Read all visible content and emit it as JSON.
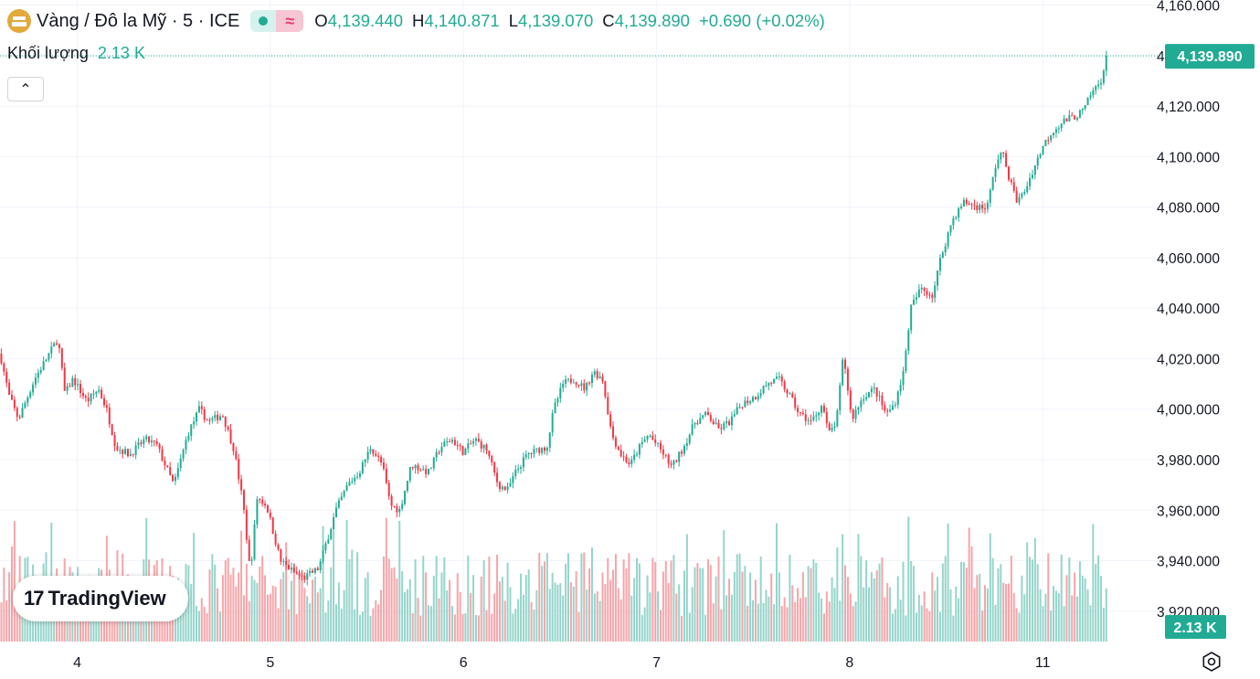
{
  "header": {
    "symbol": "Vàng / Đô la Mỹ · 5 · ICE",
    "open_label": "O",
    "open": "4,139.440",
    "high_label": "H",
    "high": "4,140.871",
    "low_label": "L",
    "low": "4,139.070",
    "close_label": "C",
    "close": "4,139.890",
    "change": "+0.690 (+0.02%)"
  },
  "volume": {
    "label": "Khối lượng",
    "value": "2.13 K"
  },
  "brand": {
    "name": "TradingView",
    "mark": "17"
  },
  "colors": {
    "up": "#22ab94",
    "down": "#f23645",
    "up_vol": "#95d5cb",
    "down_vol": "#f6a5a9",
    "grid": "#f0f3fa",
    "axis_text": "#131722"
  },
  "chart_data": {
    "type": "candlestick",
    "title": "Vàng / Đô la Mỹ · 5 · ICE",
    "ylim": [
      3908,
      4162
    ],
    "y_ticks": [
      "4,160.000",
      "4,140.000",
      "4,120.000",
      "4,100.000",
      "4,080.000",
      "4,060.000",
      "4,040.000",
      "4,020.000",
      "4,000.000",
      "3,980.000",
      "3,960.000",
      "3,940.000",
      "3,920.000"
    ],
    "y_tick_values": [
      4160,
      4140,
      4120,
      4100,
      4080,
      4060,
      4040,
      4020,
      4000,
      3980,
      3960,
      3940,
      3920
    ],
    "x_ticks": [
      "4",
      "5",
      "6",
      "7",
      "8",
      "11"
    ],
    "x_tick_positions": [
      0.0667,
      0.2333,
      0.4,
      0.5667,
      0.7333,
      0.9
    ],
    "last_price_label": "4,139.890",
    "last_price": 4139.89,
    "last_volume_label": "2.13 K",
    "path": [
      [
        0,
        4022
      ],
      [
        0.008,
        4005
      ],
      [
        0.016,
        3996
      ],
      [
        0.03,
        4012
      ],
      [
        0.04,
        4020
      ],
      [
        0.05,
        4028
      ],
      [
        0.056,
        4006
      ],
      [
        0.063,
        4012
      ],
      [
        0.075,
        4003
      ],
      [
        0.085,
        4008
      ],
      [
        0.092,
        4000
      ],
      [
        0.1,
        3985
      ],
      [
        0.112,
        3982
      ],
      [
        0.125,
        3988
      ],
      [
        0.135,
        3986
      ],
      [
        0.15,
        3970
      ],
      [
        0.162,
        3990
      ],
      [
        0.172,
        4000
      ],
      [
        0.18,
        3995
      ],
      [
        0.192,
        3998
      ],
      [
        0.202,
        3984
      ],
      [
        0.21,
        3962
      ],
      [
        0.216,
        3935
      ],
      [
        0.222,
        3965
      ],
      [
        0.23,
        3962
      ],
      [
        0.242,
        3940
      ],
      [
        0.252,
        3936
      ],
      [
        0.262,
        3933
      ],
      [
        0.275,
        3937
      ],
      [
        0.29,
        3960
      ],
      [
        0.3,
        3970
      ],
      [
        0.31,
        3975
      ],
      [
        0.32,
        3985
      ],
      [
        0.33,
        3978
      ],
      [
        0.337,
        3962
      ],
      [
        0.345,
        3960
      ],
      [
        0.355,
        3978
      ],
      [
        0.37,
        3975
      ],
      [
        0.38,
        3985
      ],
      [
        0.39,
        3988
      ],
      [
        0.4,
        3983
      ],
      [
        0.41,
        3988
      ],
      [
        0.42,
        3984
      ],
      [
        0.43,
        3970
      ],
      [
        0.438,
        3968
      ],
      [
        0.445,
        3975
      ],
      [
        0.455,
        3982
      ],
      [
        0.465,
        3984
      ],
      [
        0.472,
        3985
      ],
      [
        0.478,
        4000
      ],
      [
        0.486,
        4010
      ],
      [
        0.495,
        4012
      ],
      [
        0.505,
        4008
      ],
      [
        0.512,
        4015
      ],
      [
        0.52,
        4012
      ],
      [
        0.528,
        3990
      ],
      [
        0.536,
        3982
      ],
      [
        0.544,
        3978
      ],
      [
        0.552,
        3985
      ],
      [
        0.56,
        3990
      ],
      [
        0.57,
        3984
      ],
      [
        0.58,
        3977
      ],
      [
        0.59,
        3985
      ],
      [
        0.6,
        3995
      ],
      [
        0.61,
        3998
      ],
      [
        0.62,
        3992
      ],
      [
        0.63,
        3995
      ],
      [
        0.64,
        4002
      ],
      [
        0.652,
        4005
      ],
      [
        0.662,
        4010
      ],
      [
        0.672,
        4012
      ],
      [
        0.682,
        4005
      ],
      [
        0.69,
        3998
      ],
      [
        0.7,
        3995
      ],
      [
        0.71,
        4002
      ],
      [
        0.715,
        3990
      ],
      [
        0.722,
        3995
      ],
      [
        0.728,
        4022
      ],
      [
        0.735,
        3996
      ],
      [
        0.745,
        4005
      ],
      [
        0.755,
        4008
      ],
      [
        0.765,
        3998
      ],
      [
        0.772,
        4002
      ],
      [
        0.78,
        4015
      ],
      [
        0.786,
        4040
      ],
      [
        0.795,
        4048
      ],
      [
        0.805,
        4045
      ],
      [
        0.812,
        4060
      ],
      [
        0.822,
        4075
      ],
      [
        0.832,
        4082
      ],
      [
        0.845,
        4080
      ],
      [
        0.852,
        4080
      ],
      [
        0.86,
        4098
      ],
      [
        0.865,
        4102
      ],
      [
        0.872,
        4090
      ],
      [
        0.878,
        4082
      ],
      [
        0.884,
        4086
      ],
      [
        0.892,
        4095
      ],
      [
        0.9,
        4104
      ],
      [
        0.908,
        4110
      ],
      [
        0.918,
        4114
      ],
      [
        0.928,
        4116
      ],
      [
        0.935,
        4118
      ],
      [
        0.942,
        4125
      ],
      [
        0.95,
        4130
      ],
      [
        0.956,
        4139.9
      ]
    ]
  }
}
